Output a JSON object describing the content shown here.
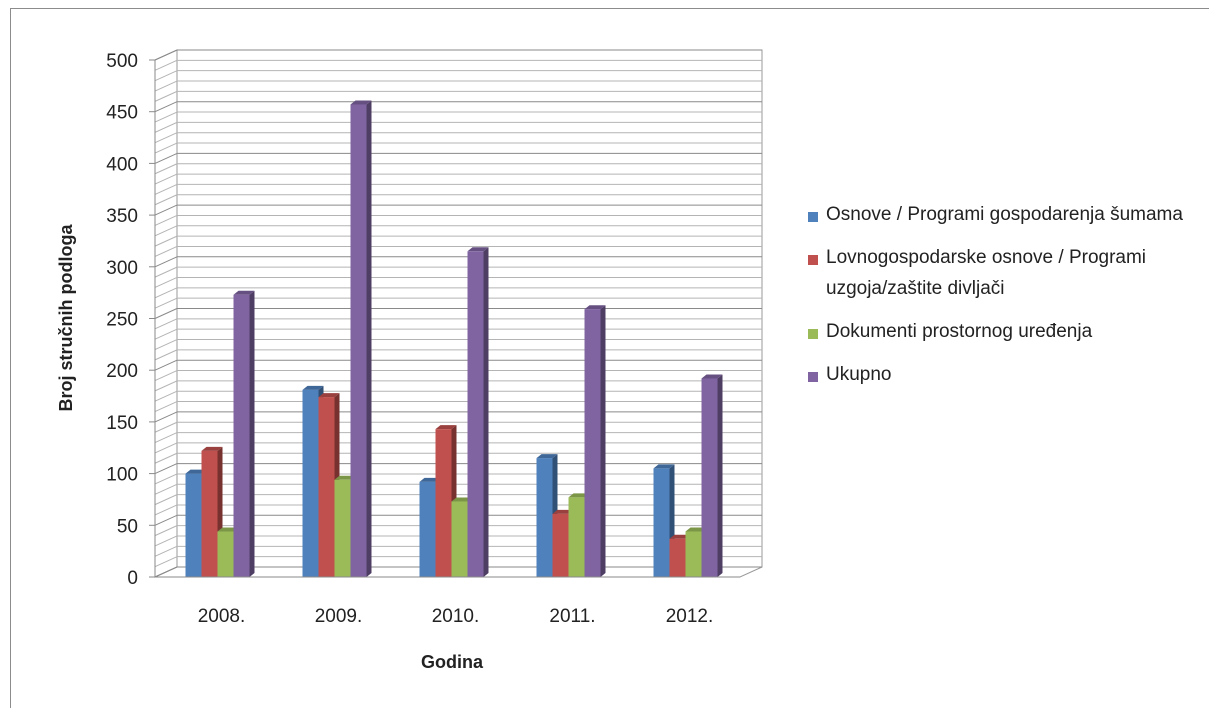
{
  "chart_data": {
    "type": "bar",
    "xlabel": "Godina",
    "ylabel": "Broj stručnih podloga",
    "categories": [
      "2008.",
      "2009.",
      "2010.",
      "2011.",
      "2012."
    ],
    "ylim": [
      0,
      500
    ],
    "yticks": [
      "0",
      "50",
      "100",
      "150",
      "200",
      "250",
      "300",
      "350",
      "400",
      "450",
      "500"
    ],
    "grid": true,
    "legend_position": "right",
    "series": [
      {
        "name": "Osnove / Programi gospodarenja šumama",
        "values": [
          100,
          181,
          92,
          115,
          105
        ],
        "color": "#4f81bd"
      },
      {
        "name": "Lovnogospodarske osnove / Programi uzgoja/zaštite divljači",
        "values": [
          122,
          174,
          143,
          61,
          37
        ],
        "color": "#c0504d"
      },
      {
        "name": "Dokumenti prostornog uređenja",
        "values": [
          44,
          94,
          73,
          77,
          44
        ],
        "color": "#9bbb59"
      },
      {
        "name": "Ukupno",
        "values": [
          273,
          457,
          315,
          259,
          192
        ],
        "color": "#8064a2"
      }
    ]
  }
}
